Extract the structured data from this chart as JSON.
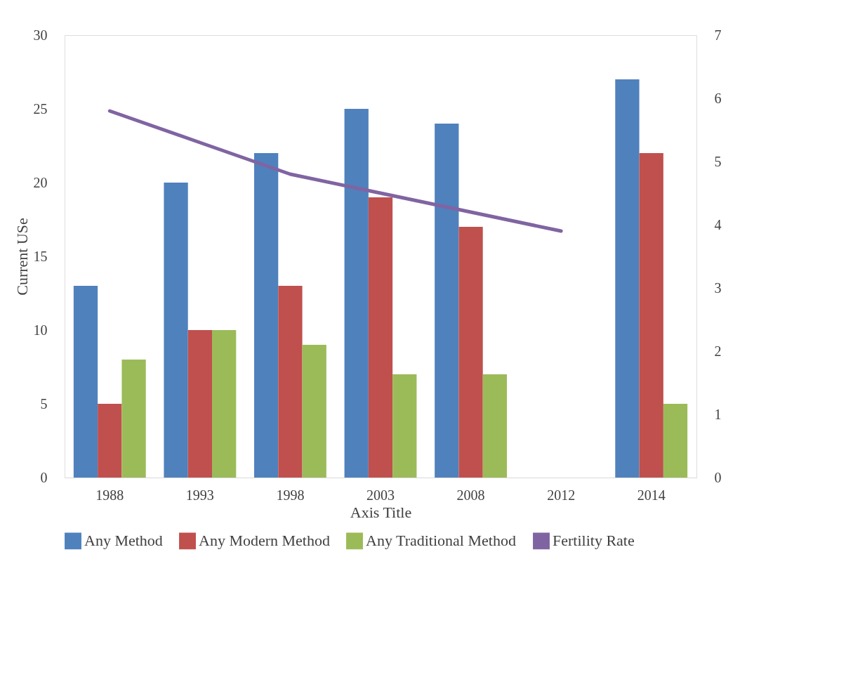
{
  "chart_data": {
    "type": "bar",
    "xlabel": "Axis Title",
    "ylabel": "Current USe",
    "categories": [
      "1988",
      "1993",
      "1998",
      "2003",
      "2008",
      "2012",
      "2014"
    ],
    "series": [
      {
        "name": "Any Method",
        "color": "#4f81bd",
        "values": [
          13,
          20,
          22,
          25,
          24,
          null,
          27
        ]
      },
      {
        "name": "Any Modern Method",
        "color": "#c0504d",
        "values": [
          5,
          10,
          13,
          19,
          17,
          null,
          22
        ]
      },
      {
        "name": "Any Traditional Method",
        "color": "#9bbb59",
        "values": [
          8,
          10,
          9,
          7,
          7,
          null,
          5
        ]
      },
      {
        "name": "Fertility Rate",
        "color": "#8064a2",
        "type": "line",
        "axis": "y2",
        "values": [
          5.8,
          5.3,
          4.8,
          4.5,
          4.2,
          3.9,
          null
        ]
      }
    ],
    "ylim": [
      0,
      30
    ],
    "yticks": [
      0,
      5,
      10,
      15,
      20,
      25,
      30
    ],
    "y2lim": [
      0,
      7
    ],
    "y2ticks": [
      0,
      1,
      2,
      3,
      4,
      5,
      6,
      7
    ],
    "legend": "bottom"
  }
}
